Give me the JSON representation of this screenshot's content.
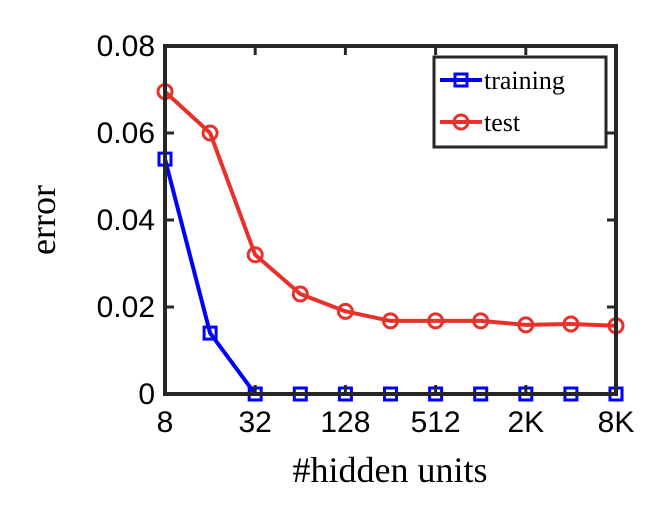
{
  "chart_data": {
    "type": "line",
    "xlabel": "#hidden units",
    "ylabel": "error",
    "x_scale": "log2",
    "x": [
      8,
      16,
      32,
      64,
      128,
      256,
      512,
      1024,
      2048,
      4096,
      8192
    ],
    "xticks": [
      8,
      32,
      128,
      512,
      2048,
      8192
    ],
    "xtick_labels": [
      "8",
      "32",
      "128",
      "512",
      "2K",
      "8K"
    ],
    "xlim": [
      8,
      8192
    ],
    "ylim": [
      0,
      0.08
    ],
    "yticks": [
      0,
      0.02,
      0.04,
      0.06,
      0.08
    ],
    "ytick_labels": [
      "0",
      "0.02",
      "0.04",
      "0.06",
      "0.08"
    ],
    "grid": false,
    "legend_position": "top-right",
    "series": [
      {
        "name": "training",
        "color": "#0000ff",
        "marker": "square",
        "values": [
          0.054,
          0.014,
          0,
          0,
          0,
          0,
          0,
          0,
          0,
          0,
          0
        ]
      },
      {
        "name": "test",
        "color": "#e8312a",
        "marker": "circle",
        "values": [
          0.0695,
          0.06,
          0.032,
          0.023,
          0.019,
          0.0168,
          0.0168,
          0.0168,
          0.0159,
          0.0161,
          0.0157
        ]
      }
    ]
  }
}
